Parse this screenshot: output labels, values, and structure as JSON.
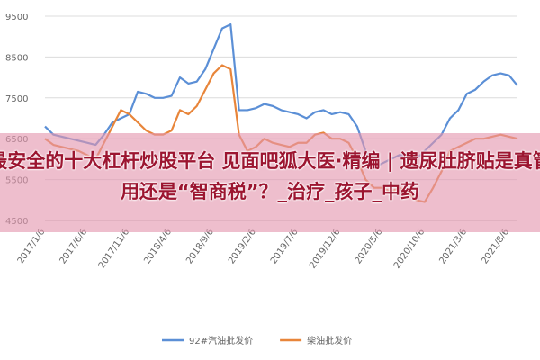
{
  "chart_data": {
    "type": "line",
    "categories": [
      "2017/1/6",
      null,
      null,
      null,
      null,
      "2017/6/6",
      null,
      null,
      null,
      null,
      "2017/11/6",
      null,
      null,
      null,
      null,
      "2018/4/6",
      null,
      null,
      null,
      null,
      "2018/9/6",
      null,
      null,
      null,
      null,
      "2019/2/6",
      null,
      null,
      null,
      null,
      "2019/7/6",
      null,
      null,
      null,
      null,
      "2019/12/6",
      null,
      null,
      null,
      null,
      "2020/5/6",
      null,
      null,
      null,
      null,
      "2020/10/6",
      null,
      null,
      null,
      null,
      "2021/3/6",
      null,
      null,
      null,
      null,
      "2021/8/6",
      null
    ],
    "series": [
      {
        "name": "92#汽油批发价",
        "color": "#5b8fd6",
        "values": [
          6800,
          6600,
          6550,
          6500,
          6450,
          6400,
          6350,
          6600,
          6900,
          7000,
          7100,
          7650,
          7600,
          7500,
          7500,
          7550,
          8000,
          7850,
          7900,
          8200,
          8700,
          9200,
          9300,
          7200,
          7200,
          7250,
          7350,
          7300,
          7200,
          7150,
          7100,
          7000,
          7150,
          7200,
          7100,
          7150,
          7100,
          6800,
          6200,
          5800,
          5900,
          6000,
          6100,
          6100,
          6000,
          6200,
          6400,
          6600,
          7000,
          7200,
          7600,
          7700,
          7900,
          8050,
          8100,
          8050,
          7800
        ]
      },
      {
        "name": "柴油批发价",
        "color": "#e8853a",
        "values": [
          6500,
          6350,
          6300,
          6250,
          6200,
          6100,
          6000,
          6400,
          6800,
          7200,
          7100,
          6900,
          6700,
          6600,
          6600,
          6700,
          7200,
          7100,
          7300,
          7700,
          8100,
          8300,
          8200,
          6600,
          6200,
          6300,
          6500,
          6400,
          6350,
          6300,
          6400,
          6400,
          6600,
          6650,
          6500,
          6500,
          6400,
          6000,
          5500,
          5300,
          5300,
          5200,
          5300,
          5200,
          5000,
          4950,
          5300,
          5700,
          6200,
          6300,
          6400,
          6500,
          6500,
          6550,
          6600,
          6550,
          6500
        ]
      }
    ],
    "ylim": [
      4500,
      9500
    ],
    "yticks": [
      4500,
      5500,
      6500,
      7500,
      8500,
      9500
    ],
    "grid": true
  },
  "overlay": {
    "text": "最安全的十大杠杆炒股平台 见面吧狐大医·精编 | 遗尿肚脐贴是真管用还是“智商税”？_治疗_孩子_中药"
  }
}
